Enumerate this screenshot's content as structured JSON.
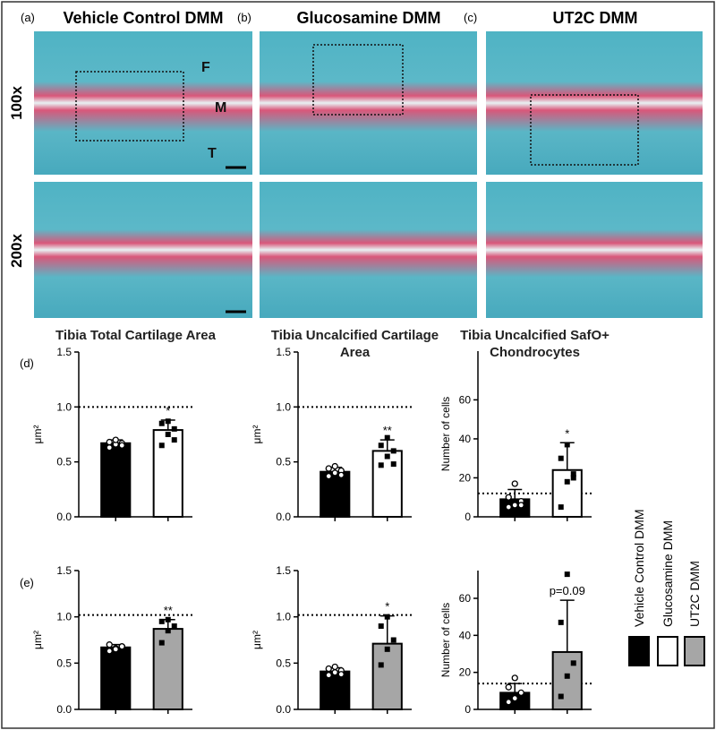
{
  "panels": [
    {
      "letter": "(a)",
      "title": "Vehicle Control DMM"
    },
    {
      "letter": "(b)",
      "title": "Glucosamine DMM"
    },
    {
      "letter": "(c)",
      "title": "UT2C DMM"
    }
  ],
  "magnifications": [
    "100x",
    "200x"
  ],
  "image_labels": [
    "F",
    "M",
    "T"
  ],
  "row_labels": [
    "(d)",
    "(e)"
  ],
  "legend": [
    {
      "name": "Vehicle Control DMM",
      "color": "#000000"
    },
    {
      "name": "Glucosamine DMM",
      "color": "#ffffff"
    },
    {
      "name": "UT2C DMM",
      "color": "#a6a6a6"
    }
  ],
  "chart_data": [
    {
      "type": "bar",
      "title": "Tibia Total Cartilage Area",
      "ylabel": "μm²",
      "categories": [
        null,
        null
      ],
      "values": [
        0.67,
        0.79
      ],
      "errors": [
        0.03,
        0.09
      ],
      "colors": [
        "#000000",
        "#ffffff"
      ],
      "markers": [
        "circle",
        "square"
      ],
      "points": [
        [
          0.63,
          0.66,
          0.67,
          0.68,
          0.7,
          0.65
        ],
        [
          0.65,
          0.75,
          0.8,
          0.85,
          0.87,
          0.7
        ]
      ],
      "reference": 1,
      "annotation": "*",
      "ylim": [
        0,
        1.5
      ],
      "yticks": [
        {
          "value": 0,
          "label": "0.0"
        },
        0.5,
        {
          "value": 1,
          "label": "1.0"
        },
        1.5
      ]
    },
    {
      "type": "bar",
      "title": "Tibia Uncalcified Cartilage Area",
      "ylabel": "μm²",
      "categories": [
        null,
        null
      ],
      "values": [
        0.41,
        0.6
      ],
      "errors": [
        0.04,
        0.1
      ],
      "colors": [
        "#000000",
        "#ffffff"
      ],
      "markers": [
        "circle",
        "square"
      ],
      "points": [
        [
          0.37,
          0.4,
          0.42,
          0.44,
          0.46,
          0.38
        ],
        [
          0.47,
          0.55,
          0.6,
          0.65,
          0.72,
          0.48
        ]
      ],
      "reference": 1,
      "annotation": "**",
      "ylim": [
        0,
        1.5
      ],
      "yticks": [
        {
          "value": 0,
          "label": "0.0"
        },
        0.5,
        {
          "value": 1,
          "label": "1.0"
        },
        1.5
      ]
    },
    {
      "type": "bar",
      "title": "Tibia Uncalcified SafO+ Chondrocytes",
      "ylabel": "Number of cells",
      "categories": [
        null,
        null
      ],
      "values": [
        9,
        24
      ],
      "errors": [
        5,
        14
      ],
      "colors": [
        "#000000",
        "#ffffff"
      ],
      "markers": [
        "circle",
        "square"
      ],
      "points": [
        [
          5,
          6,
          8,
          10,
          17,
          6
        ],
        [
          5,
          18,
          22,
          30,
          37,
          20
        ]
      ],
      "reference": 12,
      "annotation": "*",
      "ylim": [
        0,
        85
      ],
      "yticks": [
        0,
        20,
        40,
        60
      ]
    },
    {
      "type": "bar",
      "ylabel": "μm²",
      "categories": [
        null,
        null
      ],
      "values": [
        0.67,
        0.87
      ],
      "errors": [
        0.03,
        0.1
      ],
      "colors": [
        "#000000",
        "#a6a6a6"
      ],
      "markers": [
        "circle",
        "square"
      ],
      "points": [
        [
          0.63,
          0.66,
          0.68,
          0.7,
          0.65,
          0.68
        ],
        [
          0.72,
          0.85,
          0.9,
          0.95,
          0.97
        ]
      ],
      "reference": 1.02,
      "annotation": "**",
      "ylim": [
        0,
        1.5
      ],
      "yticks": [
        {
          "value": 0,
          "label": "0.0"
        },
        0.5,
        {
          "value": 1,
          "label": "1.0"
        },
        1.5
      ]
    },
    {
      "type": "bar",
      "ylabel": "μm²",
      "categories": [
        null,
        null
      ],
      "values": [
        0.41,
        0.71
      ],
      "errors": [
        0.04,
        0.3
      ],
      "colors": [
        "#000000",
        "#a6a6a6"
      ],
      "markers": [
        "circle",
        "square"
      ],
      "points": [
        [
          0.37,
          0.4,
          0.42,
          0.44,
          0.46,
          0.38
        ],
        [
          0.48,
          0.65,
          0.75,
          0.9,
          1.0
        ]
      ],
      "reference": 1.02,
      "annotation": "*",
      "ylim": [
        0,
        1.5
      ],
      "yticks": [
        {
          "value": 0,
          "label": "0.0"
        },
        0.5,
        {
          "value": 1,
          "label": "1.0"
        },
        1.5
      ]
    },
    {
      "type": "bar",
      "ylabel": "Number of cells",
      "categories": [
        null,
        null
      ],
      "values": [
        9,
        31
      ],
      "errors": [
        5,
        28
      ],
      "colors": [
        "#000000",
        "#a6a6a6"
      ],
      "markers": [
        "circle",
        "square"
      ],
      "points": [
        [
          4,
          6,
          9,
          12,
          17
        ],
        [
          7,
          18,
          25,
          47,
          73
        ]
      ],
      "reference": 14,
      "annotation": "p=0.09",
      "ylim": [
        0,
        75
      ],
      "yticks": [
        0,
        20,
        40,
        60
      ]
    }
  ]
}
